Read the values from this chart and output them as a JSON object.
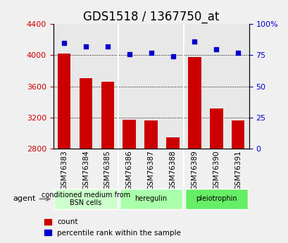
{
  "title": "GDS1518 / 1367750_at",
  "categories": [
    "GSM76383",
    "GSM76384",
    "GSM76385",
    "GSM76386",
    "GSM76387",
    "GSM76388",
    "GSM76389",
    "GSM76390",
    "GSM76391"
  ],
  "counts": [
    4020,
    3700,
    3660,
    3170,
    3160,
    2940,
    3980,
    3310,
    3160
  ],
  "percentiles": [
    85,
    82,
    82,
    76,
    77,
    74,
    86,
    80,
    77
  ],
  "ylim_left": [
    2800,
    4400
  ],
  "ylim_right": [
    0,
    100
  ],
  "yticks_left": [
    2800,
    3200,
    3600,
    4000,
    4400
  ],
  "yticks_right": [
    0,
    25,
    50,
    75,
    100
  ],
  "bar_color": "#cc0000",
  "dot_color": "#0000cc",
  "bg_color": "#e8e8e8",
  "groups": [
    {
      "label": "conditioned medium from\nBSN cells",
      "start": 0,
      "end": 3,
      "color": "#ccffcc"
    },
    {
      "label": "heregulin",
      "start": 3,
      "end": 6,
      "color": "#aaffaa"
    },
    {
      "label": "pleiotrophin",
      "start": 6,
      "end": 9,
      "color": "#66ee66"
    }
  ],
  "agent_label": "agent",
  "legend_count": "count",
  "legend_pct": "percentile rank within the sample",
  "title_fontsize": 12,
  "axis_label_color_left": "#cc0000",
  "axis_label_color_right": "#0000cc"
}
